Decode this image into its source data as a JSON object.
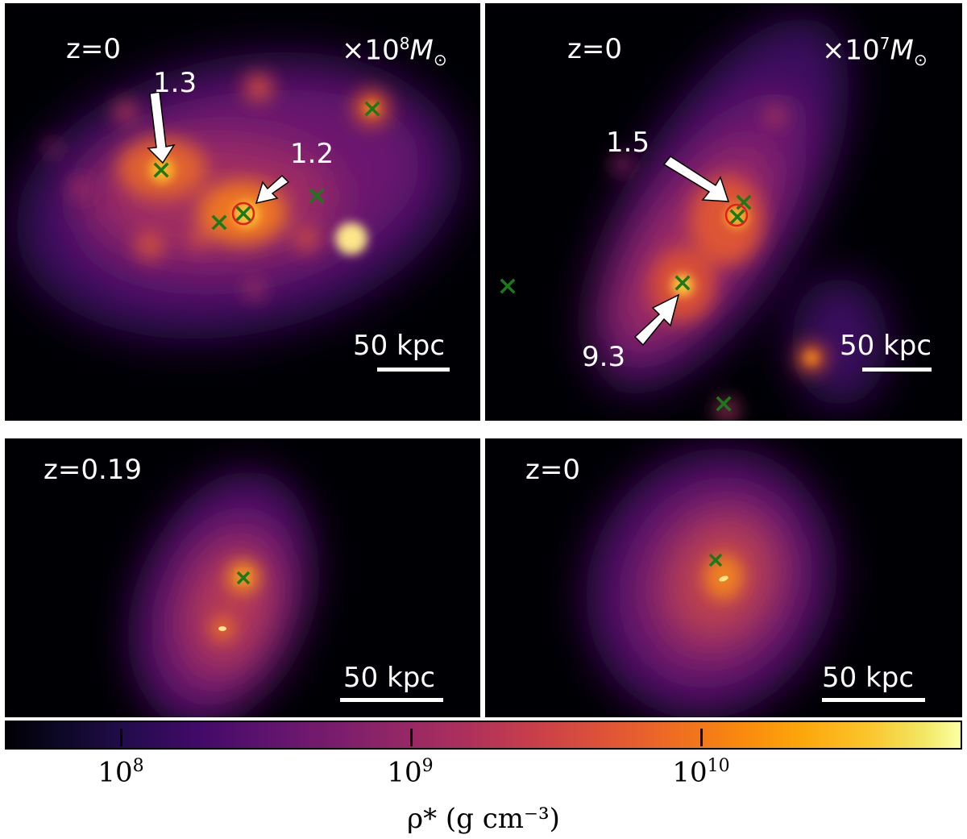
{
  "panels": [
    {
      "id": "top-left",
      "redshift": "z=0",
      "mass_prefix": "×10",
      "mass_exp": "8",
      "mass_unit": "M",
      "mass_sub": "⊙",
      "scale_label": "50 kpc",
      "annotations": [
        {
          "text": "1.3"
        },
        {
          "text": "1.2"
        }
      ]
    },
    {
      "id": "top-right",
      "redshift": "z=0",
      "mass_prefix": "×10",
      "mass_exp": "7",
      "mass_unit": "M",
      "mass_sub": "⊙",
      "scale_label": "50 kpc",
      "annotations": [
        {
          "text": "1.5"
        },
        {
          "text": "9.3"
        }
      ]
    },
    {
      "id": "bottom-left",
      "redshift": "z=0.19",
      "scale_label": "50 kpc"
    },
    {
      "id": "bottom-right",
      "redshift": "z=0",
      "scale_label": "50 kpc"
    }
  ],
  "colorbar": {
    "colormap": "inferno",
    "scale": "log",
    "ticks": [
      {
        "base": "10",
        "exp": "8"
      },
      {
        "base": "10",
        "exp": "9"
      },
      {
        "base": "10",
        "exp": "10"
      }
    ],
    "label": "ρ* (g cm⁻³)"
  },
  "colors": {
    "marker_cross": "#1a7a1a",
    "marker_circle": "#e02020",
    "arrow": "#ffffff"
  }
}
